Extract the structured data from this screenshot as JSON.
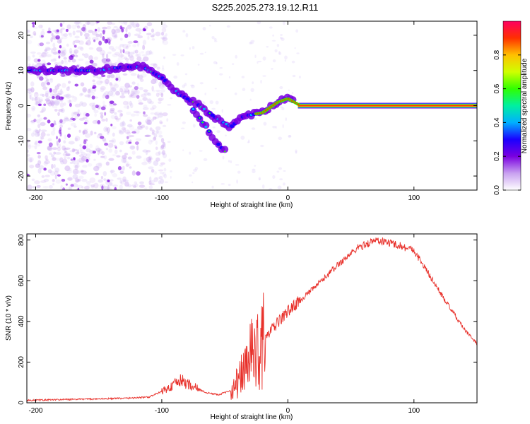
{
  "title": "S225.2025.273.19.12.R11",
  "colors": {
    "snr_line": "#e8312b",
    "frame": "#000000",
    "colorbar": [
      "#ffffff",
      "#c8a0f0",
      "#7a00e0",
      "#1a00ff",
      "#00b0ff",
      "#00f0a0",
      "#30ff00",
      "#d0ff00",
      "#ffc000",
      "#ff3000",
      "#ff0060"
    ]
  },
  "chart_data": [
    {
      "id": "spectrogram",
      "type": "heatmap",
      "xlabel": "Height of straight line (km)",
      "ylabel": "Frequency (Hz)",
      "xlim": [
        -207,
        150
      ],
      "ylim": [
        -24,
        24
      ],
      "xticks": [
        -200,
        -100,
        0,
        100
      ],
      "yticks": [
        -20,
        -10,
        0,
        10,
        20
      ],
      "colorbar": {
        "label": "Normalized spectral amplitude",
        "range": [
          0,
          1
        ],
        "ticks": [
          0.0,
          0.2,
          0.4,
          0.6,
          0.8
        ]
      },
      "ridge": [
        {
          "x": -205,
          "y": 10
        },
        {
          "x": -180,
          "y": 10
        },
        {
          "x": -150,
          "y": 10
        },
        {
          "x": -130,
          "y": 11
        },
        {
          "x": -115,
          "y": 11
        },
        {
          "x": -100,
          "y": 8
        },
        {
          "x": -85,
          "y": 3
        },
        {
          "x": -70,
          "y": 0
        },
        {
          "x": -55,
          "y": -4
        },
        {
          "x": -45,
          "y": -6
        },
        {
          "x": -35,
          "y": -3
        },
        {
          "x": -20,
          "y": -2
        },
        {
          "x": -8,
          "y": 1
        },
        {
          "x": 0,
          "y": 2
        },
        {
          "x": 10,
          "y": 0
        },
        {
          "x": 20,
          "y": 0
        },
        {
          "x": 150,
          "y": 0
        }
      ],
      "branch": [
        {
          "x": -75,
          "y": -1
        },
        {
          "x": -65,
          "y": -6
        },
        {
          "x": -55,
          "y": -11
        },
        {
          "x": -50,
          "y": -13
        }
      ]
    },
    {
      "id": "snr",
      "type": "line",
      "xlabel": "Height of straight line (km)",
      "ylabel": "SNR (10 * v/v)",
      "xlim": [
        -207,
        150
      ],
      "ylim": [
        0,
        830
      ],
      "xticks": [
        -200,
        -100,
        0,
        100
      ],
      "yticks": [
        0,
        200,
        400,
        600,
        800
      ],
      "envelope": [
        {
          "x": -207,
          "y": 12
        },
        {
          "x": -160,
          "y": 18
        },
        {
          "x": -130,
          "y": 22
        },
        {
          "x": -110,
          "y": 28
        },
        {
          "x": -95,
          "y": 70
        },
        {
          "x": -85,
          "y": 110
        },
        {
          "x": -75,
          "y": 80
        },
        {
          "x": -65,
          "y": 50
        },
        {
          "x": -55,
          "y": 40
        },
        {
          "x": -45,
          "y": 60
        },
        {
          "x": -38,
          "y": 120
        },
        {
          "x": -30,
          "y": 220
        },
        {
          "x": -20,
          "y": 300
        },
        {
          "x": -10,
          "y": 380
        },
        {
          "x": 0,
          "y": 450
        },
        {
          "x": 20,
          "y": 560
        },
        {
          "x": 40,
          "y": 680
        },
        {
          "x": 55,
          "y": 760
        },
        {
          "x": 70,
          "y": 800
        },
        {
          "x": 85,
          "y": 780
        },
        {
          "x": 100,
          "y": 750
        },
        {
          "x": 110,
          "y": 650
        },
        {
          "x": 125,
          "y": 500
        },
        {
          "x": 140,
          "y": 360
        },
        {
          "x": 150,
          "y": 290
        }
      ]
    }
  ]
}
